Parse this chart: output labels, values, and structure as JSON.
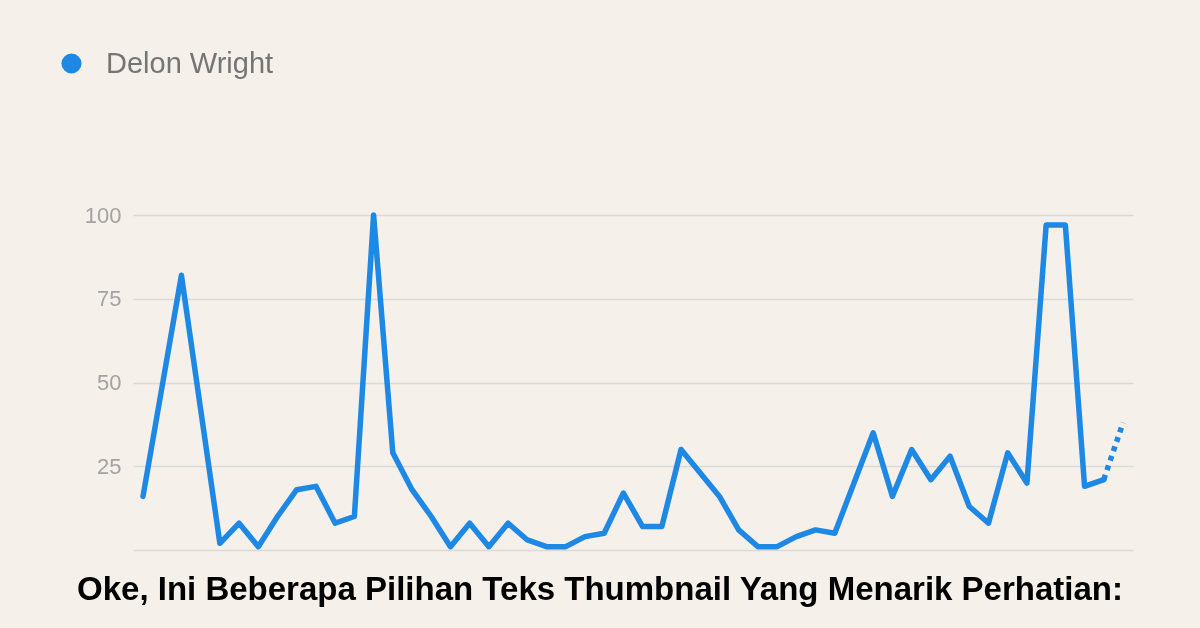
{
  "chart_data": {
    "type": "line",
    "categories": [
      null,
      null,
      null,
      null,
      null,
      null,
      null,
      null,
      null,
      null,
      null,
      null,
      null,
      null,
      null,
      null,
      null,
      null,
      null,
      null,
      null,
      null,
      null,
      null,
      null,
      null,
      null,
      null,
      null,
      null,
      null,
      null,
      null,
      null,
      null,
      null,
      null,
      null,
      null,
      null,
      null,
      null,
      null,
      null,
      null,
      null,
      null,
      null,
      null,
      null,
      null,
      null
    ],
    "series": [
      {
        "name": "Delon Wright",
        "color": "#1e88e5",
        "line_style": "solid",
        "values": [
          16,
          49,
          82,
          42,
          2,
          8,
          1,
          10,
          18,
          19,
          8,
          10,
          100,
          29,
          18,
          10,
          1,
          8,
          1,
          8,
          3,
          1,
          1,
          4,
          5,
          17,
          7,
          7,
          30,
          23,
          16,
          6,
          1,
          1,
          4,
          6,
          5,
          20,
          35,
          16,
          30,
          21,
          28,
          13,
          8,
          29,
          20,
          97,
          97,
          19,
          21,
          null
        ]
      },
      {
        "color": "#1e88e5",
        "line_style": "dotted",
        "values": [
          null,
          null,
          null,
          null,
          null,
          null,
          null,
          null,
          null,
          null,
          null,
          null,
          null,
          null,
          null,
          null,
          null,
          null,
          null,
          null,
          null,
          null,
          null,
          null,
          null,
          null,
          null,
          null,
          null,
          null,
          null,
          null,
          null,
          null,
          null,
          null,
          null,
          null,
          null,
          null,
          null,
          null,
          null,
          null,
          null,
          null,
          null,
          null,
          null,
          null,
          21,
          38
        ]
      }
    ],
    "ylim": [
      0,
      100
    ],
    "yticks": [
      {
        "value": 0,
        "label": null
      },
      25,
      50,
      75,
      100
    ],
    "grid": "y",
    "legend": "top left",
    "tick_labels": "y",
    "marker": "none",
    "annotations": [
      "Oke, Ini Beberapa Pilihan Teks Thumbnail Yang Menarik Perhatian:"
    ]
  }
}
